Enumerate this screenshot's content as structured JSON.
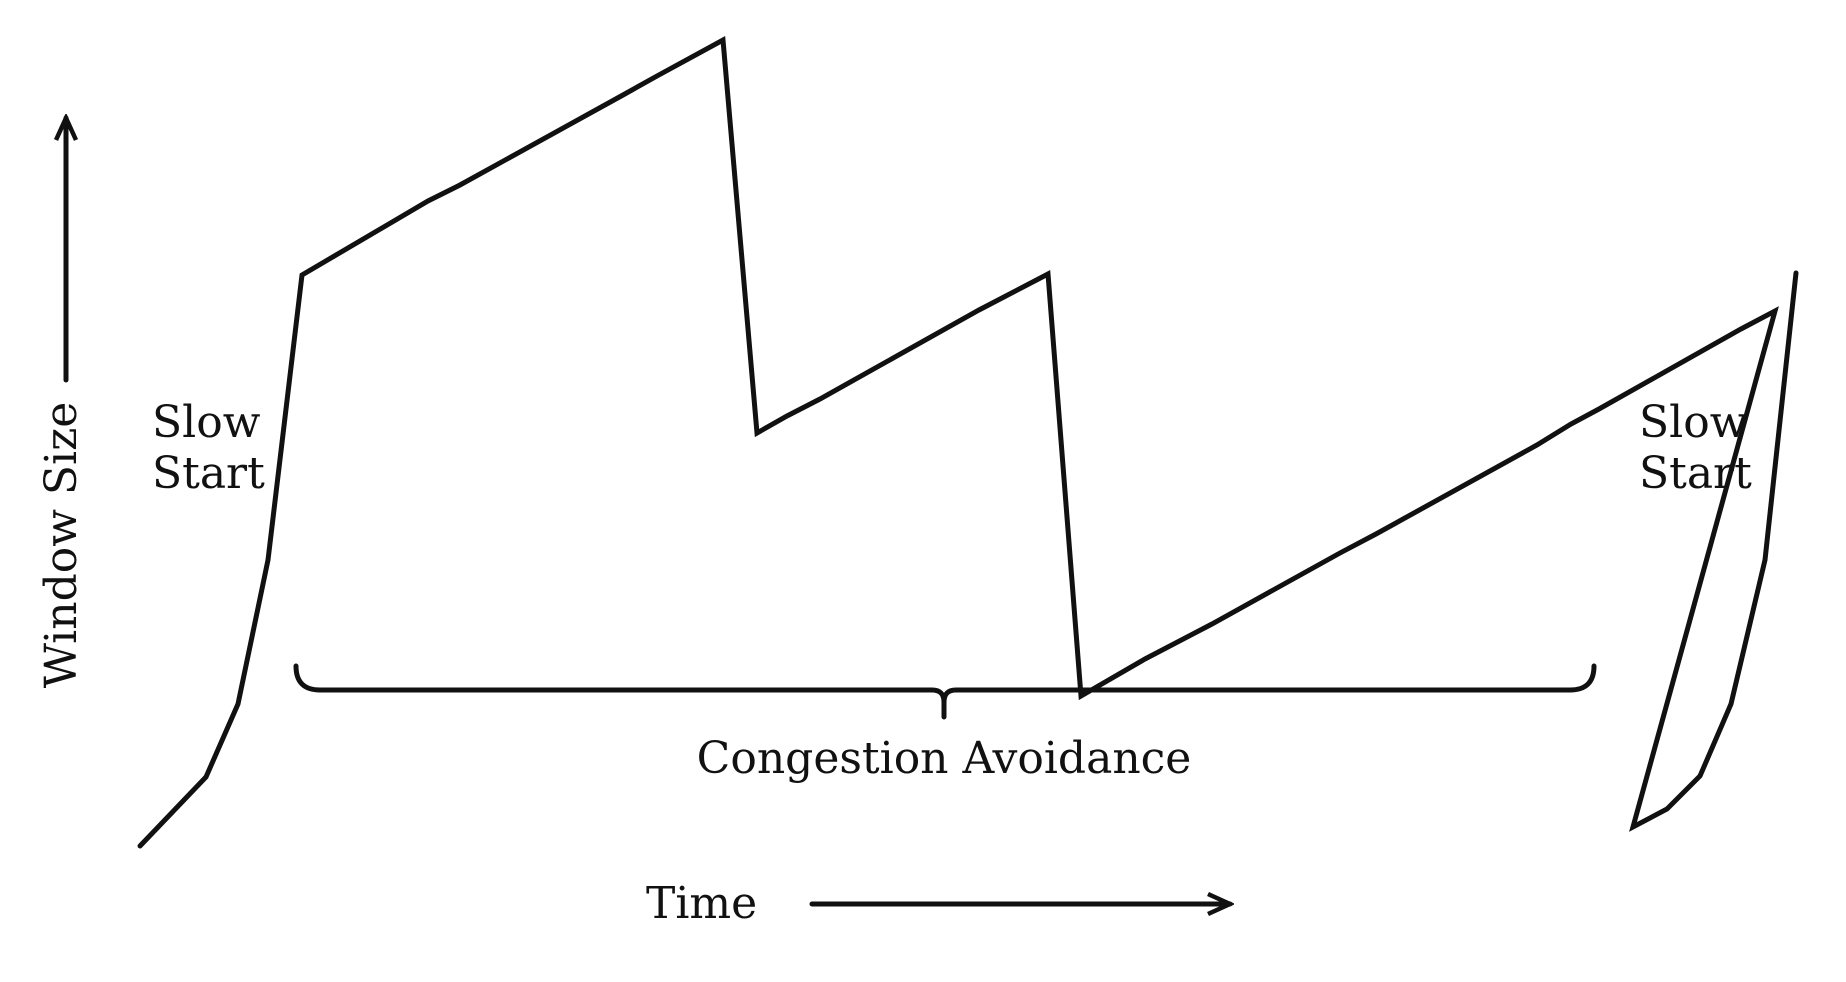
{
  "labels": {
    "y_axis": "Window Size",
    "x_axis": "Time",
    "slow_start_left": [
      "Slow",
      "Start"
    ],
    "slow_start_right": [
      "Slow",
      "Start"
    ],
    "congestion_avoidance": "Congestion Avoidance"
  },
  "colors": {
    "ink": "#111111",
    "background": "#ffffff"
  }
}
